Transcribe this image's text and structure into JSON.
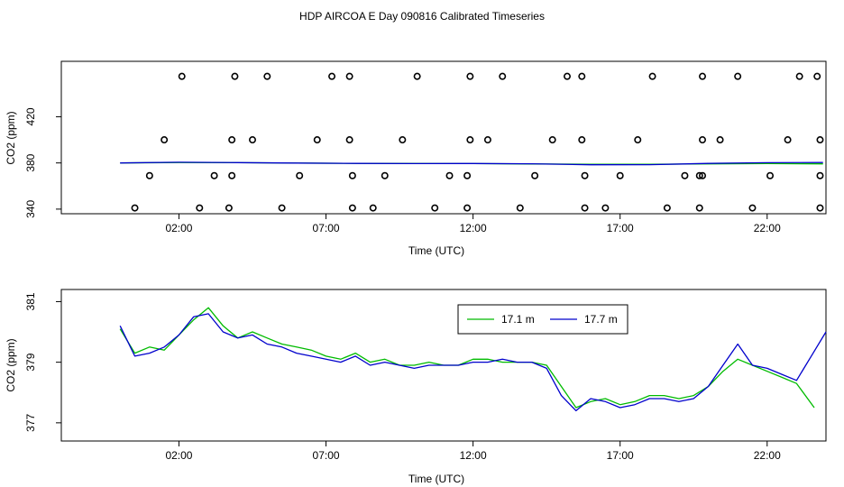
{
  "title": "HDP AIRCOA E  Day 090816  Calibrated Timeseries",
  "colors": {
    "green": "#00bb00",
    "blue": "#0000cc",
    "axis": "#000000"
  },
  "chart_data": [
    {
      "type": "line",
      "xlabel": "Time (UTC)",
      "ylabel": "CO2 (ppm)",
      "xlim": [
        -2.0,
        24.0
      ],
      "ylim": [
        336.0,
        468.0
      ],
      "x_ticks": [
        2,
        7,
        12,
        17,
        22
      ],
      "x_tick_labels": [
        "02:00",
        "07:00",
        "12:00",
        "17:00",
        "22:00"
      ],
      "y_ticks": [
        340,
        380,
        420
      ],
      "y_tick_labels": [
        "340",
        "380",
        "420"
      ],
      "grid": false,
      "series": [
        {
          "color": "green",
          "x": [
            0,
            2,
            4,
            6,
            8,
            10,
            12,
            14,
            16,
            18,
            20,
            22,
            23.9
          ],
          "values": [
            380,
            380.4,
            380.2,
            379.9,
            379.6,
            379.5,
            379.4,
            379.1,
            378.9,
            378.8,
            379.2,
            379.4,
            379.2
          ]
        },
        {
          "color": "blue",
          "x": [
            0,
            2,
            4,
            6,
            8,
            10,
            12,
            14,
            16,
            18,
            20,
            22,
            23.9
          ],
          "values": [
            380,
            380.6,
            380.3,
            379.9,
            379.6,
            379.4,
            379.5,
            379.3,
            378.4,
            378.5,
            379.6,
            380.2,
            380.4
          ]
        }
      ],
      "points": [
        {
          "x": 2.1,
          "y": 455
        },
        {
          "x": 3.9,
          "y": 455
        },
        {
          "x": 5.0,
          "y": 455
        },
        {
          "x": 7.2,
          "y": 455
        },
        {
          "x": 7.8,
          "y": 455
        },
        {
          "x": 10.1,
          "y": 455
        },
        {
          "x": 11.9,
          "y": 455
        },
        {
          "x": 13.0,
          "y": 455
        },
        {
          "x": 15.2,
          "y": 455
        },
        {
          "x": 15.7,
          "y": 455
        },
        {
          "x": 18.1,
          "y": 455
        },
        {
          "x": 19.8,
          "y": 455
        },
        {
          "x": 21.0,
          "y": 455
        },
        {
          "x": 23.1,
          "y": 455
        },
        {
          "x": 23.7,
          "y": 455
        },
        {
          "x": 1.5,
          "y": 400
        },
        {
          "x": 3.8,
          "y": 400
        },
        {
          "x": 4.5,
          "y": 400
        },
        {
          "x": 6.7,
          "y": 400
        },
        {
          "x": 7.8,
          "y": 400
        },
        {
          "x": 9.6,
          "y": 400
        },
        {
          "x": 11.9,
          "y": 400
        },
        {
          "x": 12.5,
          "y": 400
        },
        {
          "x": 14.7,
          "y": 400
        },
        {
          "x": 15.7,
          "y": 400
        },
        {
          "x": 17.6,
          "y": 400
        },
        {
          "x": 19.8,
          "y": 400
        },
        {
          "x": 20.4,
          "y": 400
        },
        {
          "x": 22.7,
          "y": 400
        },
        {
          "x": 23.8,
          "y": 400
        },
        {
          "x": 1.0,
          "y": 369
        },
        {
          "x": 3.2,
          "y": 369
        },
        {
          "x": 3.8,
          "y": 369
        },
        {
          "x": 6.1,
          "y": 369
        },
        {
          "x": 7.9,
          "y": 369
        },
        {
          "x": 9.0,
          "y": 369
        },
        {
          "x": 11.2,
          "y": 369
        },
        {
          "x": 11.8,
          "y": 369
        },
        {
          "x": 14.1,
          "y": 369
        },
        {
          "x": 15.8,
          "y": 369
        },
        {
          "x": 17.0,
          "y": 369
        },
        {
          "x": 19.2,
          "y": 369
        },
        {
          "x": 19.7,
          "y": 369
        },
        {
          "x": 19.8,
          "y": 369
        },
        {
          "x": 22.1,
          "y": 369
        },
        {
          "x": 23.8,
          "y": 369
        },
        {
          "x": 0.5,
          "y": 341
        },
        {
          "x": 2.7,
          "y": 341
        },
        {
          "x": 3.7,
          "y": 341
        },
        {
          "x": 5.5,
          "y": 341
        },
        {
          "x": 7.9,
          "y": 341
        },
        {
          "x": 8.6,
          "y": 341
        },
        {
          "x": 10.7,
          "y": 341
        },
        {
          "x": 11.8,
          "y": 341
        },
        {
          "x": 13.6,
          "y": 341
        },
        {
          "x": 15.8,
          "y": 341
        },
        {
          "x": 16.5,
          "y": 341
        },
        {
          "x": 18.6,
          "y": 341
        },
        {
          "x": 19.7,
          "y": 341
        },
        {
          "x": 21.5,
          "y": 341
        },
        {
          "x": 23.8,
          "y": 341
        }
      ]
    },
    {
      "type": "line",
      "xlabel": "Time (UTC)",
      "ylabel": "CO2 (ppm)",
      "xlim": [
        -2.0,
        24.0
      ],
      "ylim": [
        376.4,
        381.4
      ],
      "x_ticks": [
        2,
        7,
        12,
        17,
        22
      ],
      "x_tick_labels": [
        "02:00",
        "07:00",
        "12:00",
        "17:00",
        "22:00"
      ],
      "y_ticks": [
        377,
        379,
        381
      ],
      "y_tick_labels": [
        "377",
        "379",
        "381"
      ],
      "grid": false,
      "legend_position": "top-right",
      "series": [
        {
          "name": "17.1 m",
          "color": "green",
          "x": [
            0,
            0.5,
            1,
            1.5,
            2,
            2.5,
            3,
            3.5,
            4,
            4.5,
            5,
            5.5,
            6,
            6.5,
            7,
            7.5,
            8,
            8.5,
            9,
            9.5,
            10,
            10.5,
            11,
            11.5,
            12,
            12.5,
            13,
            13.5,
            14,
            14.5,
            15,
            15.5,
            16,
            16.5,
            17,
            17.5,
            18,
            18.5,
            19,
            19.5,
            20,
            20.5,
            21,
            21.5,
            22,
            22.5,
            23,
            23.6
          ],
          "values": [
            380.1,
            379.3,
            379.5,
            379.4,
            379.9,
            380.4,
            380.8,
            380.2,
            379.8,
            380.0,
            379.8,
            379.6,
            379.5,
            379.4,
            379.2,
            379.1,
            379.3,
            379.0,
            379.1,
            378.9,
            378.9,
            379.0,
            378.9,
            378.9,
            379.1,
            379.1,
            379.0,
            379.0,
            379.0,
            378.9,
            378.2,
            377.5,
            377.7,
            377.8,
            377.6,
            377.7,
            377.9,
            377.9,
            377.8,
            377.9,
            378.2,
            378.7,
            379.1,
            378.9,
            378.7,
            378.5,
            378.3,
            377.5
          ]
        },
        {
          "name": "17.7 m",
          "color": "blue",
          "x": [
            0,
            0.5,
            1,
            1.5,
            2,
            2.5,
            3,
            3.5,
            4,
            4.5,
            5,
            5.5,
            6,
            6.5,
            7,
            7.5,
            8,
            8.5,
            9,
            9.5,
            10,
            10.5,
            11,
            11.5,
            12,
            12.5,
            13,
            13.5,
            14,
            14.5,
            15,
            15.5,
            16,
            16.5,
            17,
            17.5,
            18,
            18.5,
            19,
            19.5,
            20,
            20.5,
            21,
            21.5,
            22,
            22.5,
            23,
            23.5,
            24
          ],
          "values": [
            380.2,
            379.2,
            379.3,
            379.5,
            379.9,
            380.5,
            380.6,
            380.0,
            379.8,
            379.9,
            379.6,
            379.5,
            379.3,
            379.2,
            379.1,
            379.0,
            379.2,
            378.9,
            379.0,
            378.9,
            378.8,
            378.9,
            378.9,
            378.9,
            379.0,
            379.0,
            379.1,
            379.0,
            379.0,
            378.8,
            377.9,
            377.4,
            377.8,
            377.7,
            377.5,
            377.6,
            377.8,
            377.8,
            377.7,
            377.8,
            378.2,
            378.9,
            379.6,
            378.9,
            378.8,
            378.6,
            378.4,
            379.2,
            380.0
          ]
        }
      ]
    }
  ]
}
